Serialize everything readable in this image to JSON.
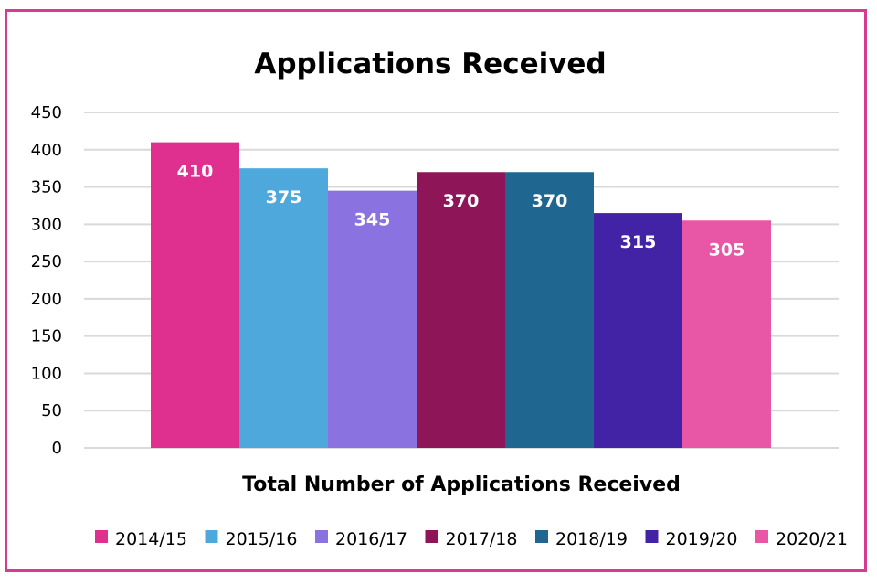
{
  "chart_data": {
    "type": "bar",
    "title": "Applications Received",
    "xlabel": "Total Number of Applications Received",
    "ylabel": "",
    "ylim": [
      0,
      450
    ],
    "yticks": [
      "0",
      "50",
      "100",
      "150",
      "200",
      "250",
      "300",
      "350",
      "400",
      "450"
    ],
    "grid": true,
    "legend_position": "bottom",
    "series": [
      {
        "name": "2014/15",
        "value": 410,
        "label": "410",
        "color": "#e0308f"
      },
      {
        "name": "2015/16",
        "value": 375,
        "label": "375",
        "color": "#4fa8dc"
      },
      {
        "name": "2016/17",
        "value": 345,
        "label": "345",
        "color": "#8a72e0"
      },
      {
        "name": "2017/18",
        "value": 370,
        "label": "370",
        "color": "#8e1557"
      },
      {
        "name": "2018/19",
        "value": 370,
        "label": "370",
        "color": "#1f6790"
      },
      {
        "name": "2019/20",
        "value": 315,
        "label": "315",
        "color": "#4323a5"
      },
      {
        "name": "2020/21",
        "value": 305,
        "label": "305",
        "color": "#e856a6"
      }
    ]
  }
}
